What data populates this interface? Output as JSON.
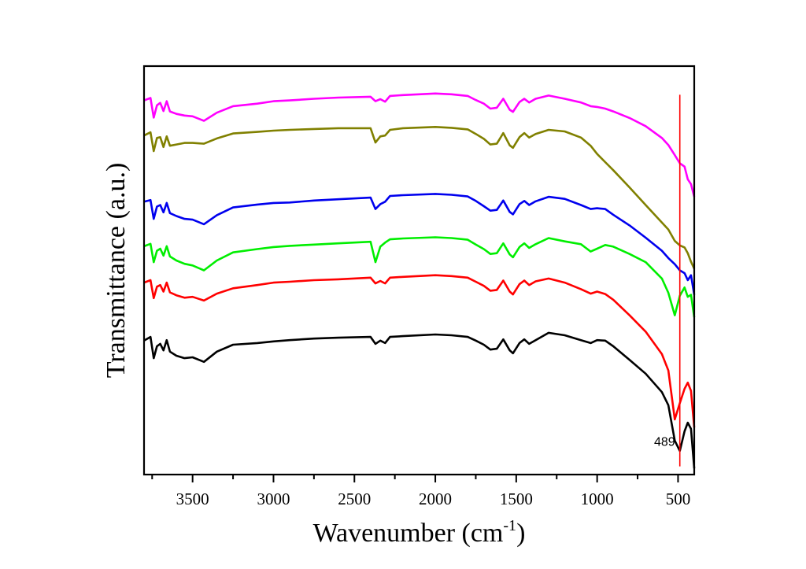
{
  "chart_data": {
    "type": "line",
    "title": "",
    "xlabel": "Wavenumber (cm",
    "xlabel_sup": "-1",
    "xlabel_close": ")",
    "ylabel": "Transmittance (a.u.)",
    "xlim": [
      3800,
      400
    ],
    "ylim": [
      0,
      100
    ],
    "x_reversed": true,
    "grid": false,
    "legend": "none",
    "y_ticks_shown": false,
    "x_ticks": [
      3500,
      3000,
      2500,
      2000,
      1500,
      1000,
      500
    ],
    "x_tick_labels": [
      "3500",
      "3000",
      "2500",
      "2000",
      "1500",
      "1000",
      "500"
    ],
    "x_minor_ticks": [
      3750,
      3250,
      2750,
      2250,
      1750,
      1250,
      750
    ],
    "annotations": [
      {
        "type": "vline",
        "x": 489,
        "color": "#ff0000",
        "y_from": 2,
        "y_to": 93
      },
      {
        "type": "text",
        "text": "489",
        "x": 489,
        "y": 7
      }
    ],
    "x": [
      3800,
      3760,
      3740,
      3720,
      3700,
      3680,
      3660,
      3640,
      3600,
      3550,
      3500,
      3430,
      3350,
      3250,
      3100,
      3000,
      2900,
      2750,
      2600,
      2400,
      2370,
      2340,
      2310,
      2280,
      2200,
      2000,
      1900,
      1800,
      1750,
      1700,
      1660,
      1620,
      1580,
      1540,
      1520,
      1480,
      1450,
      1420,
      1380,
      1300,
      1200,
      1100,
      1040,
      1000,
      950,
      900,
      800,
      700,
      600,
      560,
      520,
      489,
      460,
      440,
      420,
      400
    ],
    "series": [
      {
        "name": "black",
        "color": "#000000",
        "values": [
          32.8,
          33.7,
          28.5,
          31.4,
          32.0,
          30.4,
          32.9,
          30.1,
          29.1,
          28.5,
          28.7,
          27.6,
          30.1,
          31.8,
          32.2,
          32.6,
          32.9,
          33.3,
          33.5,
          33.7,
          32.0,
          32.8,
          32.2,
          33.7,
          33.9,
          34.3,
          34.1,
          33.7,
          32.8,
          31.8,
          30.6,
          30.8,
          33.1,
          30.4,
          29.7,
          32.2,
          33.1,
          32.0,
          32.9,
          34.7,
          34.1,
          32.9,
          32.2,
          32.9,
          32.8,
          31.4,
          28.1,
          24.7,
          20.2,
          17.0,
          8.3,
          5.8,
          10.6,
          12.7,
          11.2,
          1.5
        ]
      },
      {
        "name": "red",
        "color": "#ff0000",
        "values": [
          47.0,
          47.6,
          43.2,
          46.0,
          46.4,
          44.8,
          47.0,
          44.6,
          43.9,
          43.3,
          43.5,
          42.6,
          44.3,
          45.6,
          46.4,
          47.0,
          47.2,
          47.6,
          47.8,
          48.2,
          46.8,
          47.4,
          46.8,
          48.2,
          48.4,
          48.8,
          48.6,
          48.2,
          47.2,
          46.2,
          45.0,
          45.2,
          47.5,
          44.8,
          44.1,
          46.6,
          47.5,
          46.4,
          47.3,
          48.0,
          47.0,
          45.4,
          44.3,
          44.8,
          44.2,
          42.8,
          39.0,
          35.0,
          29.5,
          25.5,
          13.5,
          17.5,
          21.0,
          22.5,
          20.5,
          11.5
        ]
      },
      {
        "name": "green",
        "color": "#00ee00",
        "values": [
          55.9,
          56.5,
          52.0,
          54.8,
          55.3,
          53.6,
          55.9,
          53.4,
          52.4,
          51.6,
          51.2,
          50.0,
          52.4,
          54.4,
          55.2,
          55.7,
          56.0,
          56.3,
          56.6,
          57.0,
          52.0,
          55.8,
          56.8,
          57.6,
          57.8,
          58.1,
          57.9,
          57.5,
          56.3,
          55.2,
          54.0,
          54.2,
          56.6,
          53.9,
          53.2,
          55.7,
          56.6,
          55.5,
          56.4,
          57.9,
          57.1,
          56.4,
          54.6,
          55.3,
          56.2,
          55.8,
          54.0,
          52.0,
          48.0,
          44.5,
          39.0,
          43.8,
          45.8,
          43.5,
          44.0,
          38.5
        ]
      },
      {
        "name": "blue",
        "color": "#0000ee",
        "values": [
          66.8,
          67.2,
          62.6,
          65.6,
          66.0,
          64.2,
          66.5,
          64.0,
          63.3,
          62.6,
          62.4,
          61.3,
          63.5,
          65.4,
          66.1,
          66.5,
          66.6,
          67.1,
          67.4,
          67.8,
          65.0,
          66.2,
          66.8,
          68.2,
          68.4,
          68.7,
          68.5,
          68.1,
          67.0,
          65.7,
          64.6,
          64.8,
          67.1,
          64.3,
          63.7,
          66.2,
          67.0,
          66.0,
          66.9,
          68.0,
          67.5,
          66.0,
          65.0,
          65.2,
          65.0,
          63.6,
          61.0,
          58.0,
          54.8,
          53.0,
          51.5,
          50.0,
          49.3,
          47.6,
          48.8,
          44.0
        ]
      },
      {
        "name": "olive",
        "color": "#808000",
        "values": [
          83.0,
          83.8,
          79.2,
          82.4,
          82.6,
          80.2,
          82.8,
          80.5,
          80.8,
          81.2,
          81.2,
          81.0,
          82.3,
          83.5,
          83.9,
          84.2,
          84.4,
          84.6,
          84.8,
          84.8,
          81.3,
          82.8,
          83.0,
          84.4,
          84.8,
          85.1,
          84.9,
          84.5,
          83.4,
          82.2,
          80.8,
          81.0,
          83.6,
          80.6,
          80.0,
          82.6,
          83.6,
          82.5,
          83.4,
          84.4,
          84.0,
          82.5,
          80.5,
          78.5,
          76.5,
          74.5,
          70.3,
          66.0,
          61.7,
          60.0,
          57.2,
          56.1,
          55.6,
          54.2,
          52.1,
          50.4
        ]
      },
      {
        "name": "magenta",
        "color": "#ff00ff",
        "values": [
          91.6,
          92.2,
          87.4,
          90.4,
          91.0,
          89.0,
          91.4,
          88.9,
          88.3,
          87.9,
          87.7,
          86.6,
          88.6,
          90.2,
          90.8,
          91.4,
          91.6,
          92.0,
          92.3,
          92.5,
          91.4,
          91.9,
          91.3,
          92.7,
          92.9,
          93.3,
          93.1,
          92.7,
          91.7,
          90.8,
          89.6,
          89.8,
          92.0,
          89.3,
          88.8,
          91.2,
          92.0,
          91.1,
          92.0,
          92.8,
          92.0,
          91.1,
          90.2,
          90.0,
          89.6,
          88.9,
          87.3,
          85.3,
          82.4,
          80.7,
          78.2,
          76.2,
          75.4,
          72.3,
          71.1,
          68.0
        ]
      }
    ]
  }
}
